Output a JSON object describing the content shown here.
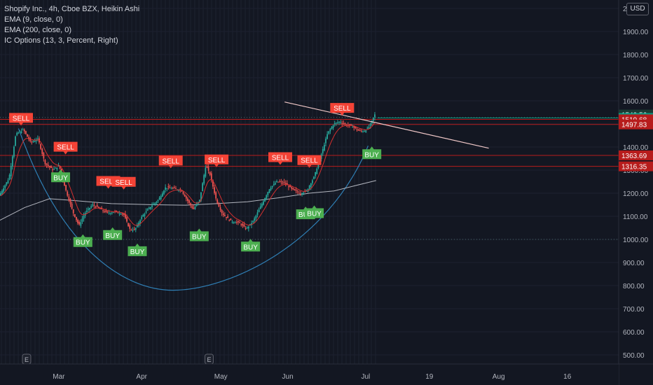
{
  "legend": {
    "title": "Shopify Inc., 4h, Cboe BZX, Heikin Ashi",
    "ema9": "EMA (9, close, 0)",
    "ema200": "EMA (200, close, 0)",
    "ic": "IC Options  (13, 3, Percent, Right)"
  },
  "currency": "USD",
  "colors": {
    "background": "#131722",
    "up": "#26a69a",
    "down": "#ef5350",
    "buy": "#4caf50",
    "sell": "#f44336",
    "ema9": "#d32f2f",
    "ema200": "#b2b5be",
    "curve": "#2f7fb5",
    "price_tag": "#089981",
    "level_tag": "#b71c1c"
  },
  "chart_data": {
    "type": "candlestick",
    "y_axis": {
      "min": 430,
      "max": 2030,
      "ticks": [
        {
          "v": 2000,
          "label": "2000.00"
        },
        {
          "v": 1900,
          "label": "1900.00"
        },
        {
          "v": 1800,
          "label": "1800.00"
        },
        {
          "v": 1700,
          "label": "1700.00"
        },
        {
          "v": 1600,
          "label": "1600.00"
        },
        {
          "v": 1500,
          "label": "1500.00"
        },
        {
          "v": 1400,
          "label": "1400.00"
        },
        {
          "v": 1300,
          "label": "1300.00"
        },
        {
          "v": 1200,
          "label": "1200.00"
        },
        {
          "v": 1100,
          "label": "1100.00"
        },
        {
          "v": 1000,
          "label": "1000.00"
        },
        {
          "v": 900,
          "label": "900.00"
        },
        {
          "v": 800,
          "label": "800.00"
        },
        {
          "v": 700,
          "label": "700.00"
        },
        {
          "v": 600,
          "label": "600.00"
        },
        {
          "v": 500,
          "label": "500.00"
        }
      ]
    },
    "x_axis": {
      "labels": [
        {
          "label": "Mar",
          "pos": 0.095
        },
        {
          "label": "Apr",
          "pos": 0.229
        },
        {
          "label": "May",
          "pos": 0.357
        },
        {
          "label": "Jun",
          "pos": 0.465
        },
        {
          "label": "Jul",
          "pos": 0.591
        },
        {
          "label": "19",
          "pos": 0.694
        },
        {
          "label": "Aug",
          "pos": 0.806
        },
        {
          "label": "16",
          "pos": 0.917
        }
      ]
    },
    "price_series": [
      [
        0.0,
        1185
      ],
      [
        0.017,
        1265
      ],
      [
        0.028,
        1455
      ],
      [
        0.04,
        1475
      ],
      [
        0.052,
        1420
      ],
      [
        0.064,
        1435
      ],
      [
        0.075,
        1330
      ],
      [
        0.088,
        1300
      ],
      [
        0.098,
        1320
      ],
      [
        0.108,
        1220
      ],
      [
        0.12,
        1120
      ],
      [
        0.13,
        1060
      ],
      [
        0.14,
        1115
      ],
      [
        0.152,
        1150
      ],
      [
        0.165,
        1130
      ],
      [
        0.175,
        1115
      ],
      [
        0.19,
        1120
      ],
      [
        0.202,
        1110
      ],
      [
        0.212,
        1045
      ],
      [
        0.22,
        1040
      ],
      [
        0.232,
        1100
      ],
      [
        0.245,
        1140
      ],
      [
        0.258,
        1170
      ],
      [
        0.27,
        1225
      ],
      [
        0.282,
        1220
      ],
      [
        0.295,
        1215
      ],
      [
        0.305,
        1170
      ],
      [
        0.315,
        1130
      ],
      [
        0.325,
        1170
      ],
      [
        0.335,
        1320
      ],
      [
        0.342,
        1280
      ],
      [
        0.352,
        1170
      ],
      [
        0.362,
        1110
      ],
      [
        0.375,
        1080
      ],
      [
        0.39,
        1070
      ],
      [
        0.4,
        1045
      ],
      [
        0.412,
        1080
      ],
      [
        0.425,
        1150
      ],
      [
        0.438,
        1220
      ],
      [
        0.45,
        1250
      ],
      [
        0.462,
        1245
      ],
      [
        0.475,
        1215
      ],
      [
        0.488,
        1200
      ],
      [
        0.498,
        1210
      ],
      [
        0.51,
        1270
      ],
      [
        0.522,
        1370
      ],
      [
        0.532,
        1460
      ],
      [
        0.542,
        1500
      ],
      [
        0.552,
        1510
      ],
      [
        0.562,
        1495
      ],
      [
        0.572,
        1490
      ],
      [
        0.582,
        1470
      ],
      [
        0.592,
        1470
      ],
      [
        0.6,
        1490
      ],
      [
        0.608,
        1540
      ]
    ],
    "ema200_series": [
      [
        0.0,
        1083
      ],
      [
        0.04,
        1138
      ],
      [
        0.08,
        1176
      ],
      [
        0.12,
        1168
      ],
      [
        0.18,
        1155
      ],
      [
        0.25,
        1150
      ],
      [
        0.3,
        1148
      ],
      [
        0.35,
        1155
      ],
      [
        0.4,
        1163
      ],
      [
        0.45,
        1180
      ],
      [
        0.5,
        1200
      ],
      [
        0.54,
        1210
      ],
      [
        0.57,
        1230
      ],
      [
        0.608,
        1255
      ]
    ],
    "horizontal_levels": [
      {
        "price": 1519.68,
        "label": "1519.68"
      },
      {
        "price": 1497.83,
        "label": "1497.83"
      },
      {
        "price": 1363.69,
        "label": "1363.69"
      },
      {
        "price": 1316.35,
        "label": "1316.35"
      }
    ],
    "dotted_levels": [
      1528,
      1000
    ],
    "last_price": {
      "price": 1525.79,
      "label": "1525.79"
    },
    "high_price": {
      "price": 1540.56,
      "label": "1540.56"
    },
    "trendline": {
      "from": [
        0.46,
        1595
      ],
      "to": [
        0.79,
        1395
      ]
    },
    "buy_signals": [
      {
        "text": "BUY",
        "pos": 0.098,
        "price": 1290
      },
      {
        "text": "BUY",
        "pos": 0.134,
        "price": 1010
      },
      {
        "text": "BUY",
        "pos": 0.182,
        "price": 1040
      },
      {
        "text": "BUY",
        "pos": 0.222,
        "price": 970
      },
      {
        "text": "BUY",
        "pos": 0.322,
        "price": 1035
      },
      {
        "text": "BUY",
        "pos": 0.405,
        "price": 990
      },
      {
        "text": "BUY",
        "pos": 0.494,
        "price": 1130
      },
      {
        "text": "BUY",
        "pos": 0.508,
        "price": 1135
      },
      {
        "text": "BUY",
        "pos": 0.601,
        "price": 1390
      }
    ],
    "sell_signals": [
      {
        "text": "SELL",
        "pos": 0.034,
        "price": 1505
      },
      {
        "text": "SELL",
        "pos": 0.106,
        "price": 1380
      },
      {
        "text": "SELL",
        "pos": 0.175,
        "price": 1232
      },
      {
        "text": "SELL",
        "pos": 0.2,
        "price": 1228
      },
      {
        "text": "SELL",
        "pos": 0.276,
        "price": 1320
      },
      {
        "text": "SELL",
        "pos": 0.35,
        "price": 1325
      },
      {
        "text": "SELL",
        "pos": 0.453,
        "price": 1335
      },
      {
        "text": "SELL",
        "pos": 0.5,
        "price": 1322
      },
      {
        "text": "SELL",
        "pos": 0.553,
        "price": 1548
      }
    ],
    "event_markers": [
      {
        "text": "E",
        "pos": 0.043
      },
      {
        "text": "E",
        "pos": 0.338
      }
    ]
  }
}
